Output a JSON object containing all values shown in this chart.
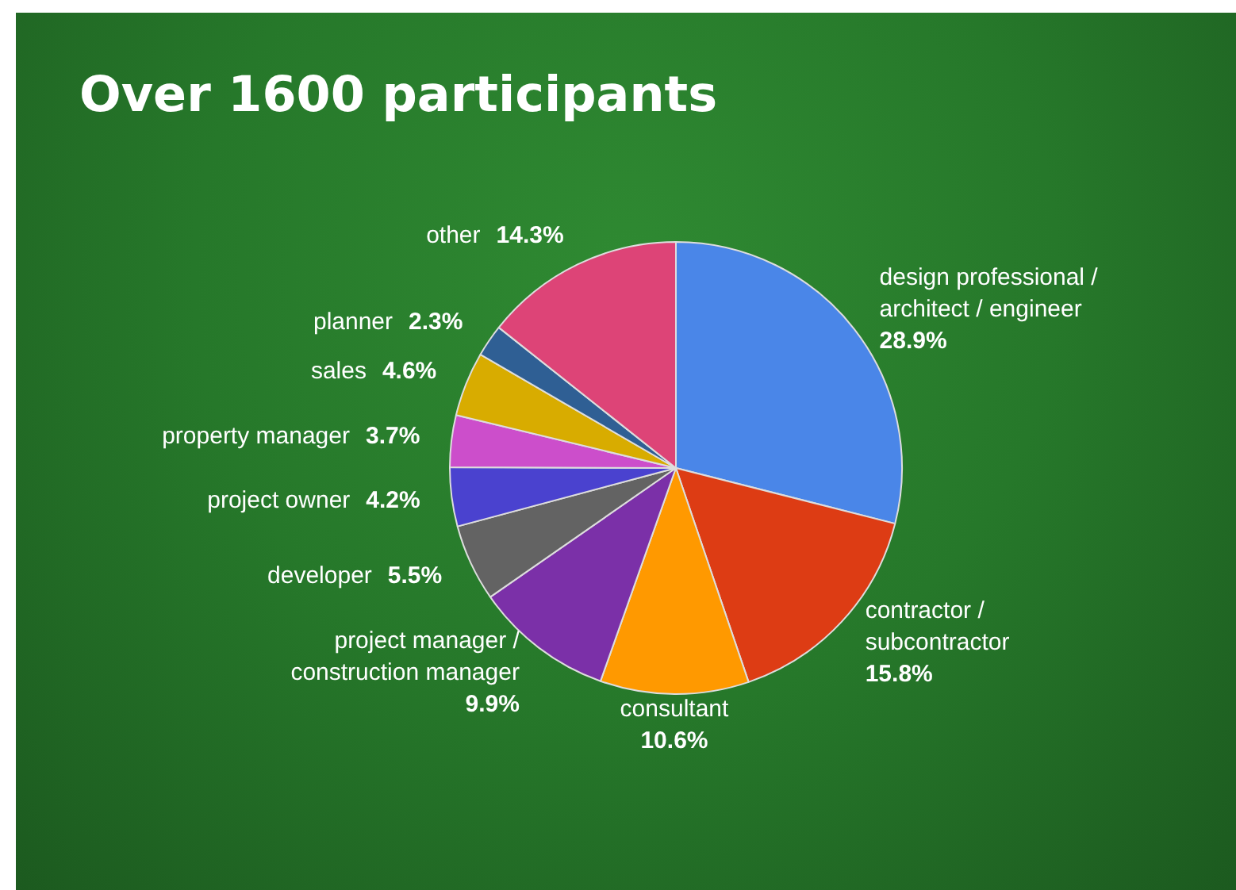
{
  "chart_data": {
    "type": "pie",
    "title": "Over 1600 participants",
    "categories": [
      "design professional / architect / engineer",
      "contractor / subcontractor",
      "consultant",
      "project manager / construction manager",
      "developer",
      "project owner",
      "property manager",
      "sales",
      "planner",
      "other"
    ],
    "values": [
      28.9,
      15.8,
      10.6,
      9.9,
      5.5,
      4.2,
      3.7,
      4.6,
      2.3,
      14.3
    ],
    "value_labels": [
      "28.9%",
      "15.8%",
      "10.6%",
      "9.9%",
      "5.5%",
      "4.2%",
      "3.7%",
      "4.6%",
      "2.3%",
      "14.3%"
    ],
    "colors": [
      "#4a86e8",
      "#dd3c14",
      "#ff9900",
      "#7b30a8",
      "#636363",
      "#4a42cf",
      "#cc4ecb",
      "#d8ac00",
      "#2f5f94",
      "#dd4477"
    ],
    "legend": false
  }
}
